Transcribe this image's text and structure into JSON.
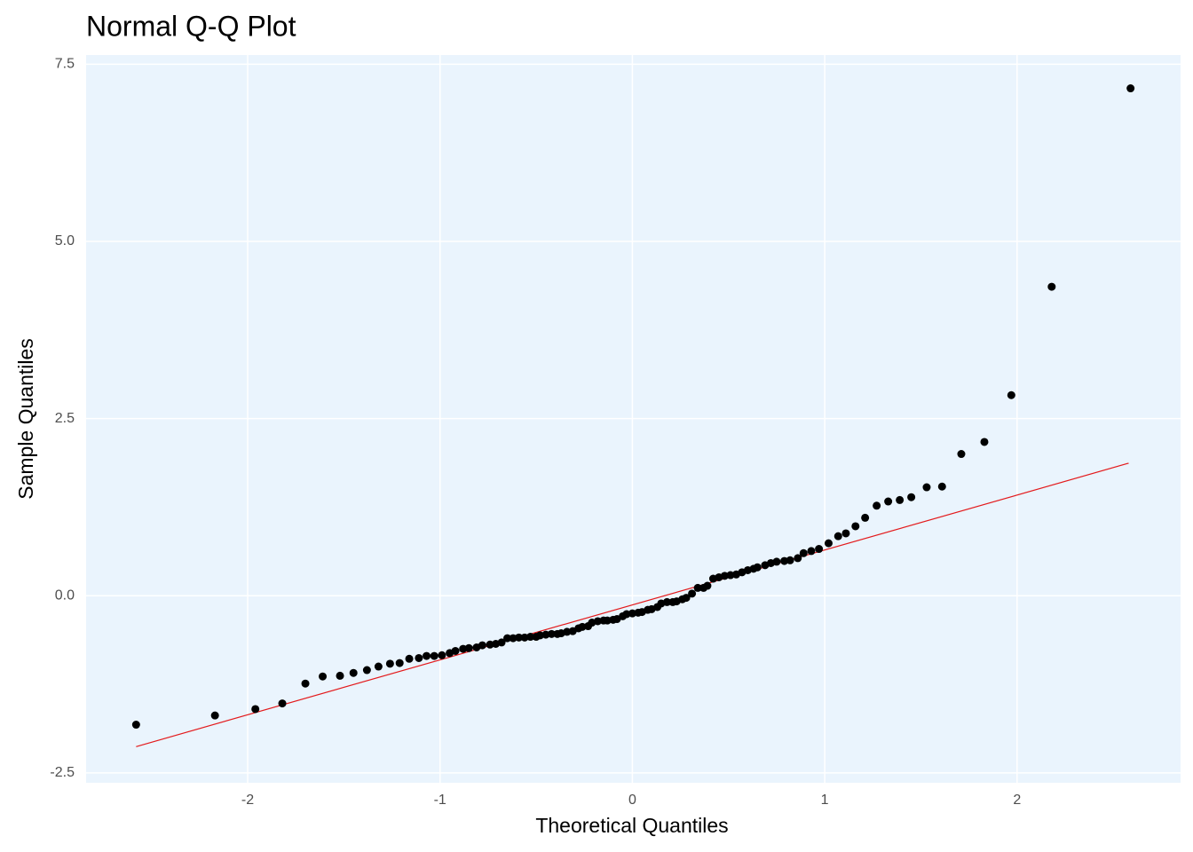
{
  "chart_data": {
    "type": "scatter",
    "title": "Normal Q-Q Plot",
    "x_label": "Theoretical Quantiles",
    "y_label": "Sample Quantiles",
    "x": [
      -2.58,
      -2.17,
      -1.96,
      -1.82,
      -1.7,
      -1.61,
      -1.52,
      -1.45,
      -1.38,
      -1.32,
      -1.26,
      -1.21,
      -1.16,
      -1.11,
      -1.07,
      -1.03,
      -0.99,
      -0.95,
      -0.92,
      -0.88,
      -0.85,
      -0.81,
      -0.78,
      -0.74,
      -0.71,
      -0.68,
      -0.65,
      -0.62,
      -0.59,
      -0.56,
      -0.53,
      -0.5,
      -0.48,
      -0.45,
      -0.42,
      -0.39,
      -0.37,
      -0.34,
      -0.31,
      -0.28,
      -0.26,
      -0.23,
      -0.21,
      -0.18,
      -0.15,
      -0.13,
      -0.1,
      -0.08,
      -0.05,
      -0.03,
      0.0,
      0.03,
      0.05,
      0.08,
      0.1,
      0.13,
      0.15,
      0.18,
      0.21,
      0.23,
      0.26,
      0.28,
      0.31,
      0.34,
      0.37,
      0.39,
      0.42,
      0.45,
      0.48,
      0.51,
      0.54,
      0.57,
      0.6,
      0.63,
      0.65,
      0.69,
      0.72,
      0.75,
      0.79,
      0.82,
      0.86,
      0.89,
      0.93,
      0.97,
      1.02,
      1.07,
      1.11,
      1.16,
      1.21,
      1.27,
      1.33,
      1.39,
      1.45,
      1.53,
      1.61,
      1.71,
      1.83,
      1.97,
      2.18,
      2.59
    ],
    "values": [
      -1.82,
      -1.69,
      -1.6,
      -1.52,
      -1.24,
      -1.14,
      -1.13,
      -1.09,
      -1.05,
      -1.0,
      -0.96,
      -0.95,
      -0.89,
      -0.88,
      -0.85,
      -0.85,
      -0.84,
      -0.81,
      -0.78,
      -0.75,
      -0.74,
      -0.73,
      -0.7,
      -0.69,
      -0.68,
      -0.66,
      -0.6,
      -0.6,
      -0.59,
      -0.59,
      -0.58,
      -0.58,
      -0.56,
      -0.55,
      -0.54,
      -0.54,
      -0.53,
      -0.51,
      -0.5,
      -0.46,
      -0.44,
      -0.43,
      -0.38,
      -0.36,
      -0.35,
      -0.35,
      -0.34,
      -0.33,
      -0.29,
      -0.26,
      -0.25,
      -0.24,
      -0.23,
      -0.2,
      -0.19,
      -0.16,
      -0.11,
      -0.09,
      -0.09,
      -0.08,
      -0.05,
      -0.03,
      0.03,
      0.11,
      0.11,
      0.14,
      0.24,
      0.26,
      0.28,
      0.29,
      0.3,
      0.33,
      0.36,
      0.38,
      0.4,
      0.43,
      0.46,
      0.48,
      0.49,
      0.5,
      0.53,
      0.6,
      0.63,
      0.66,
      0.74,
      0.84,
      0.88,
      0.98,
      1.1,
      1.27,
      1.33,
      1.35,
      1.39,
      1.53,
      1.54,
      2.0,
      2.17,
      2.83,
      4.36,
      7.16
    ],
    "color": "#000000",
    "reference_line": {
      "x": [
        -2.58,
        2.58
      ],
      "y": [
        -2.13,
        1.87
      ],
      "color": "#e31a1c"
    },
    "xlim": [
      -2.84,
      2.85
    ],
    "ylim": [
      -2.64,
      7.63
    ],
    "xticks": [
      -2,
      -1,
      0,
      1,
      2
    ],
    "yticks": [
      -2.5,
      {
        "value": 0,
        "label": "0.0"
      },
      2.5,
      {
        "value": 5,
        "label": "5.0"
      },
      7.5
    ],
    "grid": true,
    "background": "#eaf4fd"
  }
}
